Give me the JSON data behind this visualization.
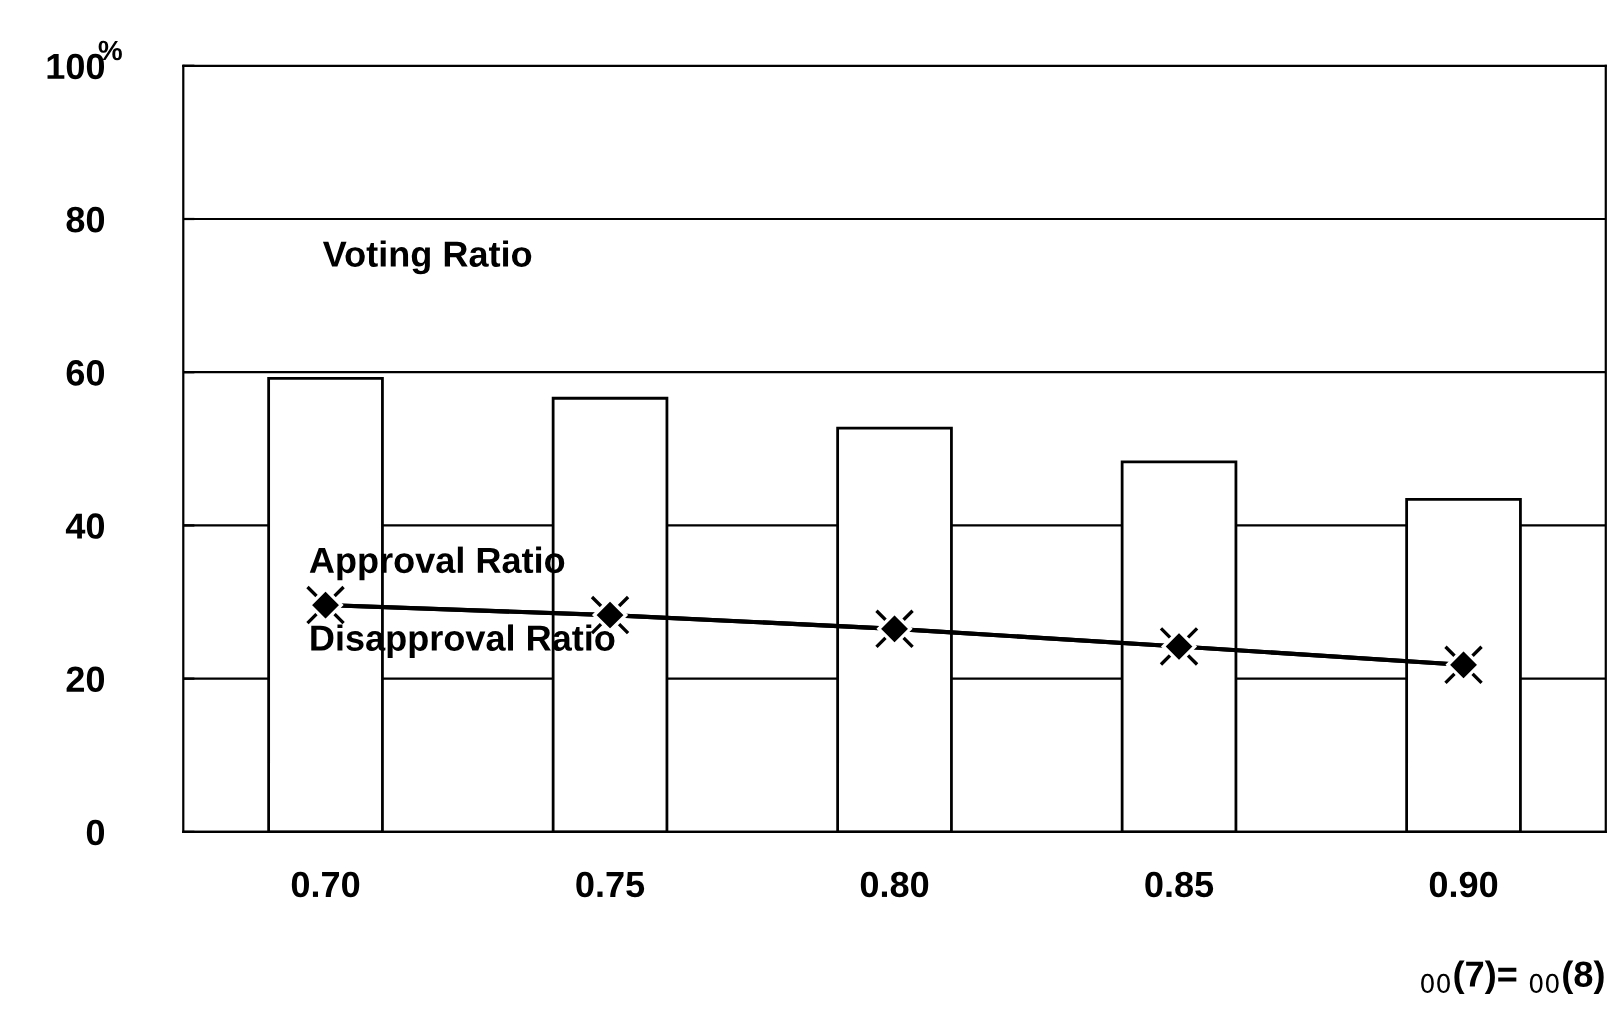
{
  "chart_data": {
    "type": "bar",
    "ylabel": "%",
    "categories": [
      "0.70",
      "0.75",
      "0.80",
      "0.85",
      "0.90"
    ],
    "series": [
      {
        "name": "Voting Ratio",
        "color": "#ffffff",
        "values": [
          59.2,
          56.6,
          52.7,
          48.3,
          43.4
        ]
      },
      {
        "name": "Approval Ratio",
        "type": "line",
        "color": "#000000",
        "marker": "diamond",
        "values": [
          29.6,
          28.3,
          26.5,
          24.2,
          21.8
        ]
      },
      {
        "name": "Disapproval Ratio",
        "type": "line",
        "color": "#000000",
        "marker": "cross",
        "values": [
          29.6,
          28.3,
          26.5,
          24.2,
          21.8
        ]
      }
    ],
    "ylim": [
      0,
      100
    ],
    "yticks": [
      0,
      20,
      40,
      60,
      80,
      100
    ],
    "grid": "y",
    "legend": false,
    "annotations": [
      "$_{00}$(7)= $_{00}$(8)"
    ]
  }
}
